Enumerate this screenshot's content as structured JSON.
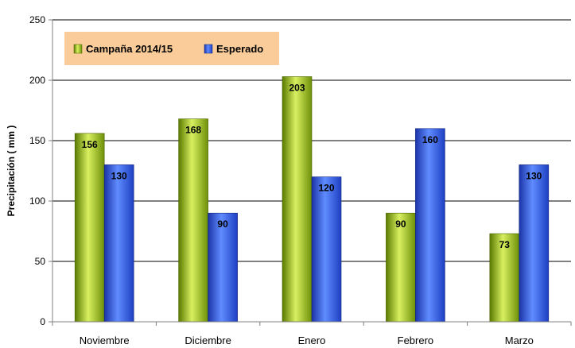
{
  "chart_data": {
    "type": "bar",
    "ylabel": "Precipitación ( mm )",
    "ylim": [
      0,
      250
    ],
    "yticks": [
      0,
      50,
      100,
      150,
      200,
      250
    ],
    "grid": true,
    "legend_position": "top-left",
    "categories": [
      "Noviembre",
      "Diciembre",
      "Enero",
      "Febrero",
      "Marzo"
    ],
    "series": [
      {
        "name": "Campaña 2014/15",
        "values": [
          156,
          168,
          203,
          90,
          73
        ],
        "color": "#8fb418"
      },
      {
        "name": "Esperado",
        "values": [
          130,
          90,
          120,
          160,
          130
        ],
        "color": "#2f57e6"
      }
    ],
    "legend_background": "#f9cc99"
  }
}
